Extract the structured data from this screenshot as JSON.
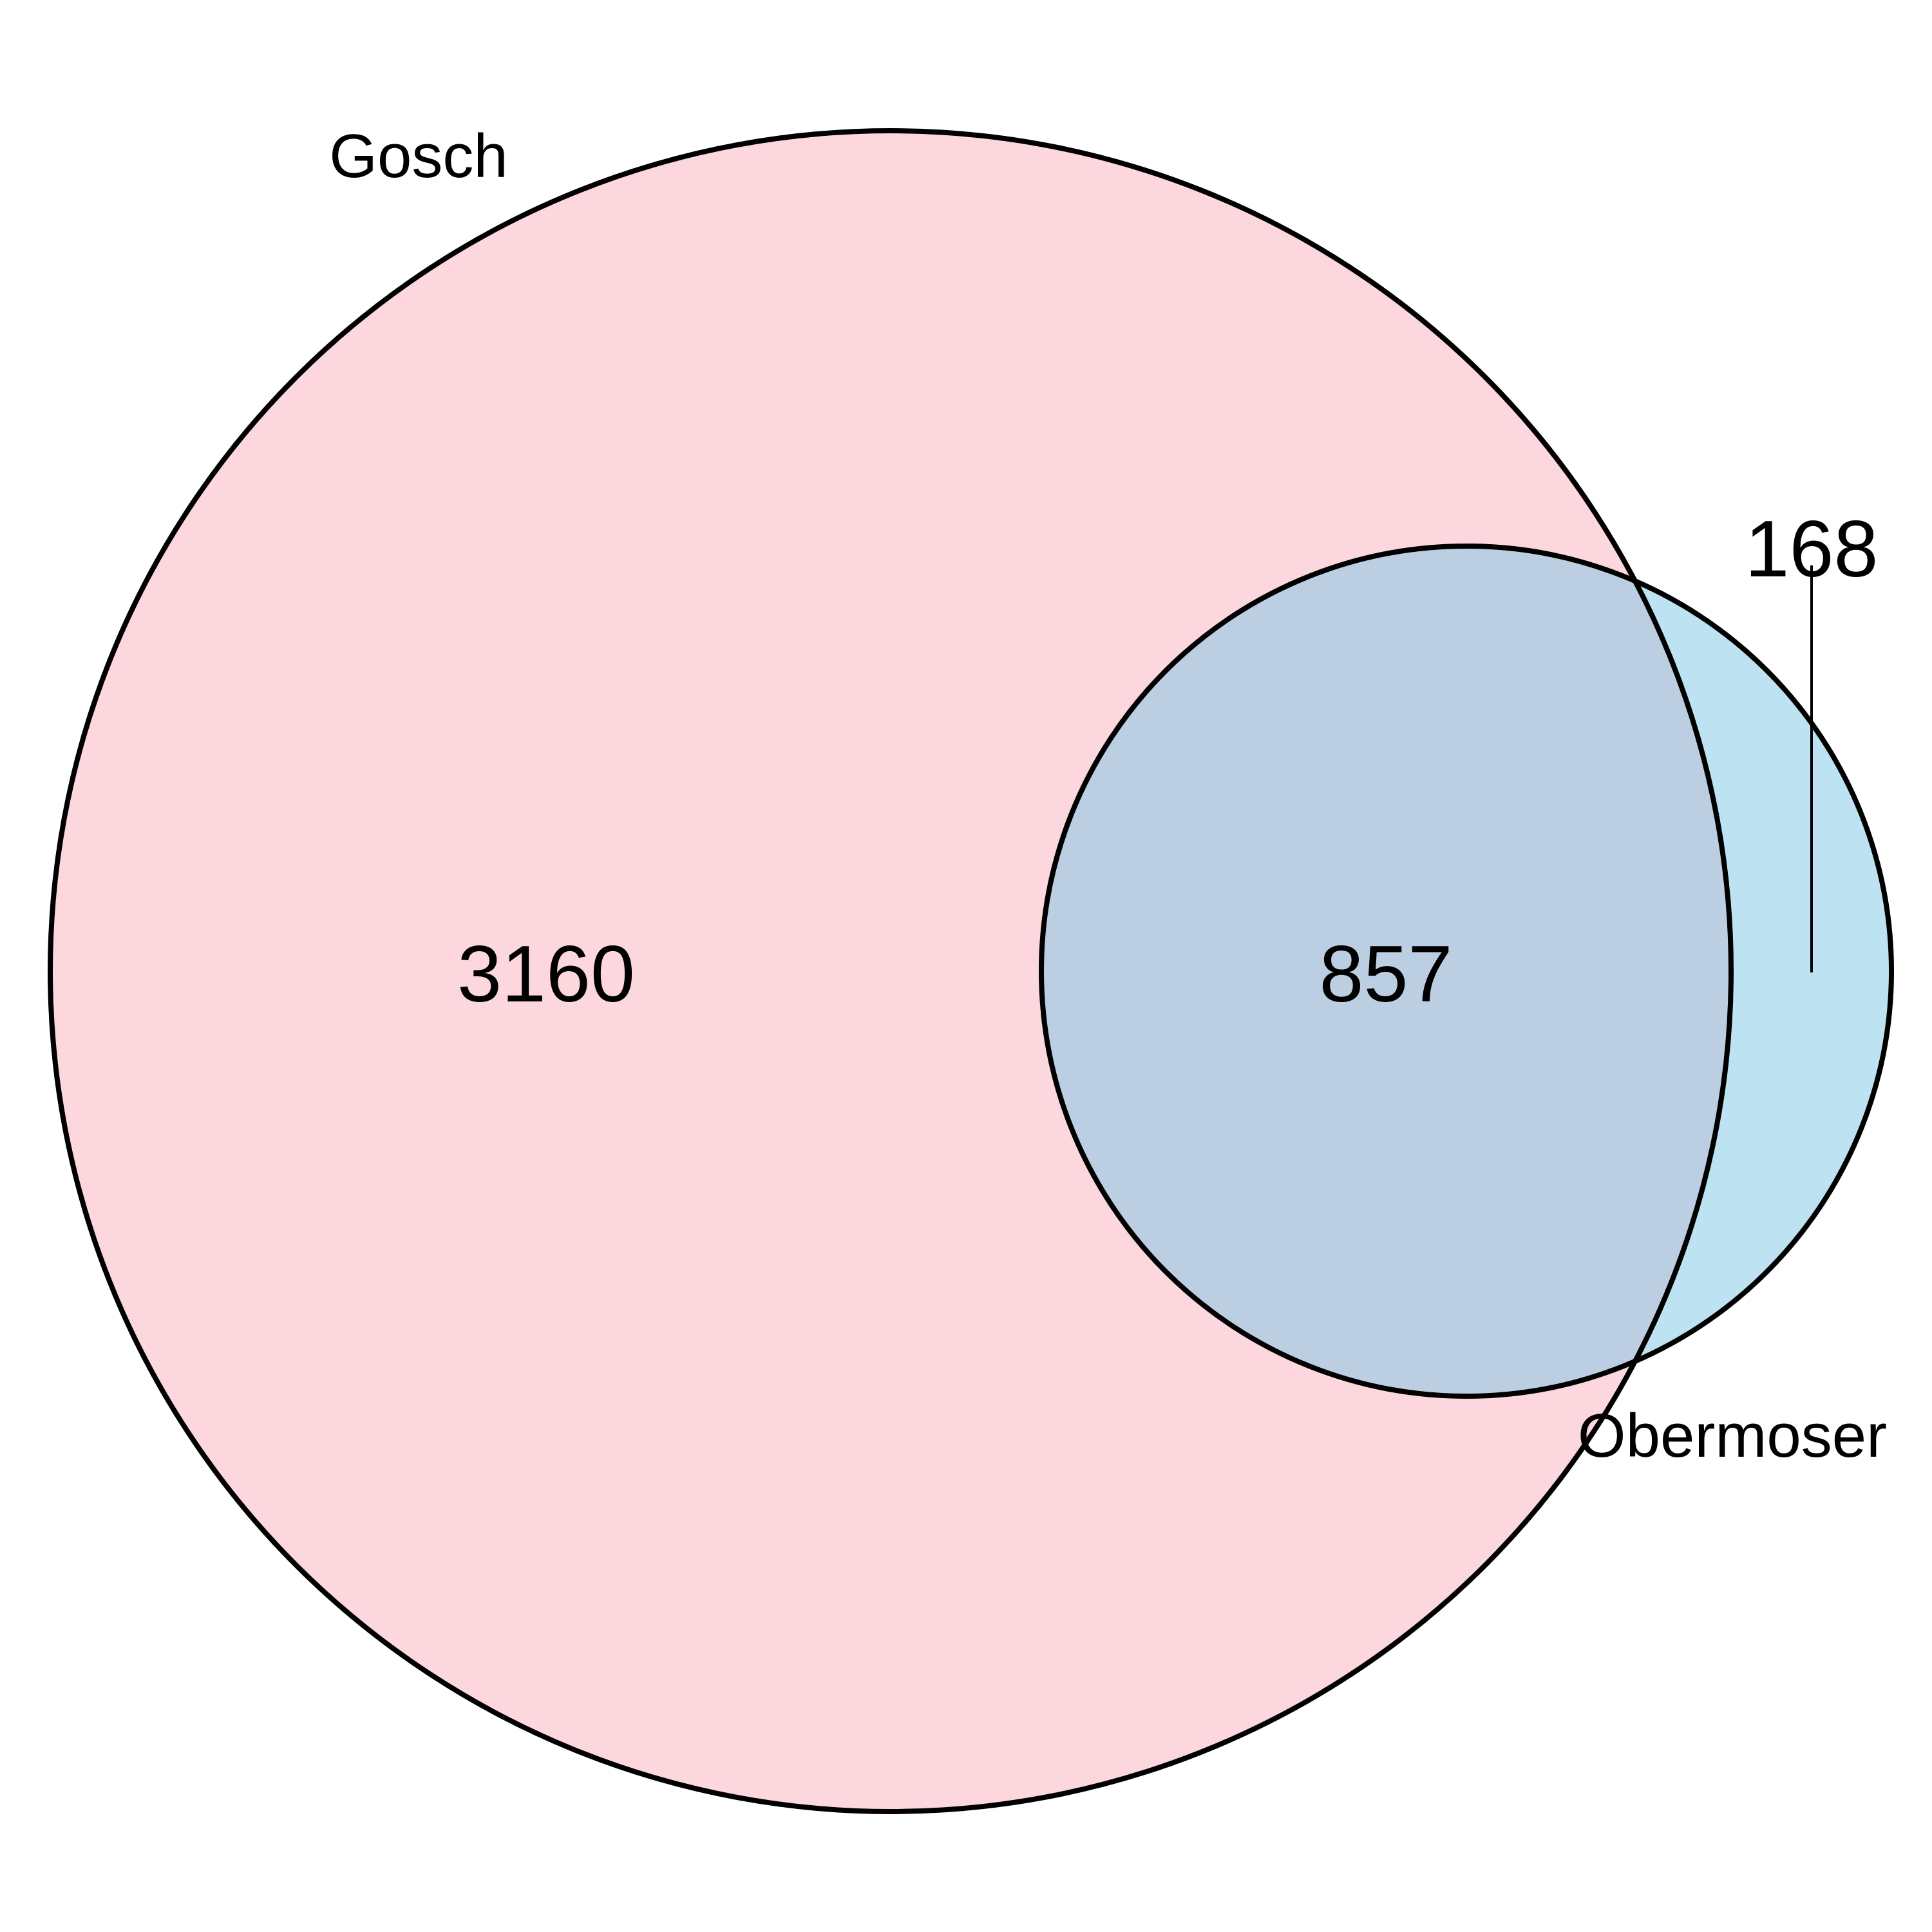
{
  "diagram": {
    "type": "venn",
    "colors": {
      "gosch_fill": "#fcd7de",
      "obermoser_fill": "#bde3f2",
      "overlap_fill": "#bccee2",
      "stroke": "#000000"
    },
    "sets": [
      {
        "id": "gosch",
        "label": "Gosch",
        "only_count": "3160"
      },
      {
        "id": "obermoser",
        "label": "Obermoser",
        "only_count": "168"
      }
    ],
    "intersection_count": "857"
  }
}
